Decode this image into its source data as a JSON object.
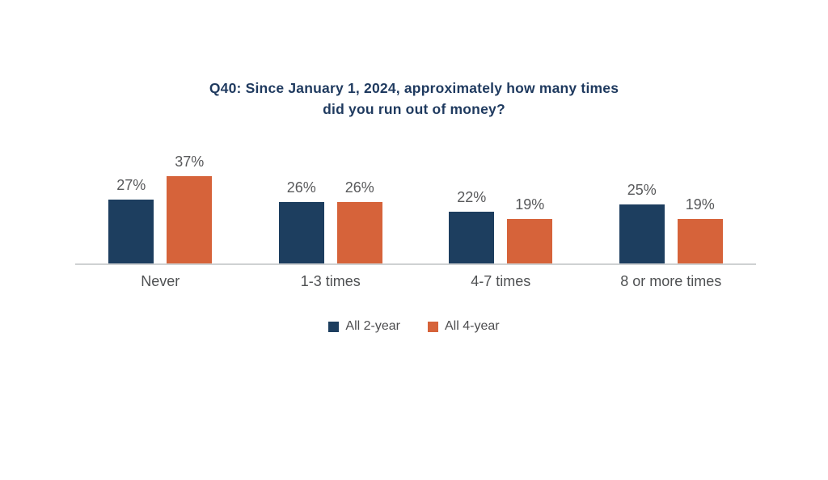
{
  "page": {
    "background": "#ffffff"
  },
  "chart_data": {
    "type": "bar",
    "title": "Q40: Since January 1, 2024, approximately how many times did you run out of money?",
    "title_lines": [
      "Q40: Since January 1, 2024, approximately how many times",
      "did you run out of money?"
    ],
    "categories": [
      "Never",
      "1-3 times",
      "4-7 times",
      "8 or more times"
    ],
    "series": [
      {
        "name": "All 2-year",
        "color": "#1d3e5f",
        "values": [
          27,
          26,
          22,
          25
        ]
      },
      {
        "name": "All 4-year",
        "color": "#d6633a",
        "values": [
          37,
          26,
          19,
          19
        ]
      }
    ],
    "value_suffix": "%",
    "ylim": [
      0,
      40
    ],
    "grid": false,
    "y_axis_visible": false,
    "legend_position": "bottom",
    "colors": {
      "title": "#1f3a5f",
      "value_label": "#58595b",
      "category_label": "#4f5153",
      "legend_text": "#4d4d4f",
      "axis_line": "#cfd1d2"
    }
  }
}
